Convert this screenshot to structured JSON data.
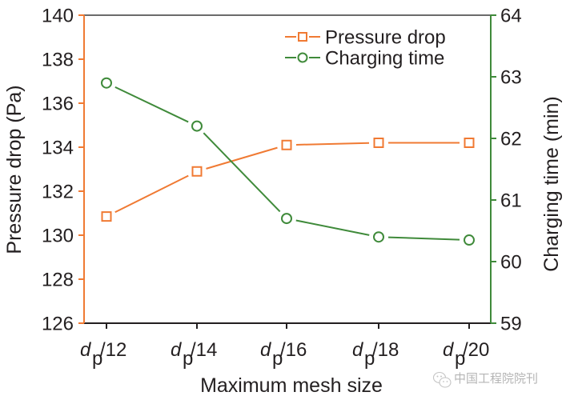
{
  "chart_data": {
    "type": "line",
    "title": "",
    "xlabel": "Maximum mesh size",
    "categories": [
      {
        "base": "d",
        "sub": "p",
        "suffix": "/12"
      },
      {
        "base": "d",
        "sub": "p",
        "suffix": "/14"
      },
      {
        "base": "d",
        "sub": "p",
        "suffix": "/16"
      },
      {
        "base": "d",
        "sub": "p",
        "suffix": "/18"
      },
      {
        "base": "d",
        "sub": "p",
        "suffix": "/20"
      }
    ],
    "y_left": {
      "label": "Pressure drop (Pa)",
      "ylim": [
        126,
        140
      ],
      "ticks": [
        126,
        128,
        130,
        132,
        134,
        136,
        138,
        140
      ],
      "color": "#f07a33"
    },
    "y_right": {
      "label": "Charging time (min)",
      "ylim": [
        59,
        64
      ],
      "ticks": [
        59,
        60,
        61,
        62,
        63,
        64
      ],
      "color": "#3f8a3a"
    },
    "series": [
      {
        "name": "Pressure drop",
        "axis": "left",
        "marker": "square",
        "color": "#f07a33",
        "values": [
          130.85,
          132.9,
          134.1,
          134.2,
          134.2
        ]
      },
      {
        "name": "Charging time",
        "axis": "right",
        "marker": "circle",
        "color": "#3f8a3a",
        "values": [
          62.9,
          62.2,
          60.7,
          60.4,
          60.35
        ]
      }
    ],
    "legend": {
      "position": "top-right"
    },
    "grid": false
  },
  "watermark": {
    "icon": "wechat-icon",
    "text": "中国工程院院刊"
  }
}
